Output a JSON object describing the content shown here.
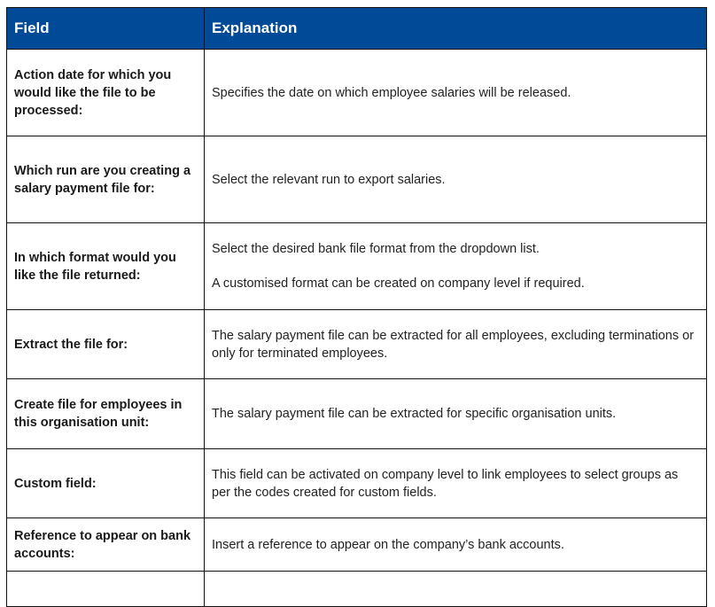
{
  "header": {
    "field": "Field",
    "explanation": "Explanation"
  },
  "header_color": "#004a98",
  "rows": [
    {
      "field": "Action date for which you would like the file to be processed:",
      "explanation": [
        "Specifies the date on which employee salaries will be released."
      ]
    },
    {
      "field": "Which run are you creating a salary payment file for:",
      "explanation": [
        "Select the relevant run to export salaries."
      ]
    },
    {
      "field": "In which format would you like the file returned:",
      "explanation": [
        "Select the desired bank file format from the dropdown list.",
        "A customised format can be created on company level if required."
      ]
    },
    {
      "field": "Extract the file for:",
      "explanation": [
        "The salary payment file can be extracted for all employees, excluding terminations or only for terminated employees."
      ]
    },
    {
      "field": "Create file for employees in this organisation unit:",
      "explanation": [
        "The salary payment file can be extracted for specific organisation units."
      ]
    },
    {
      "field": "Custom field:",
      "explanation": [
        "This field can be activated on company level to link employees to select groups as per the codes created for custom fields."
      ]
    },
    {
      "field": "Reference to appear on bank accounts:",
      "explanation": [
        "Insert a reference to appear on the company’s bank accounts."
      ]
    }
  ]
}
